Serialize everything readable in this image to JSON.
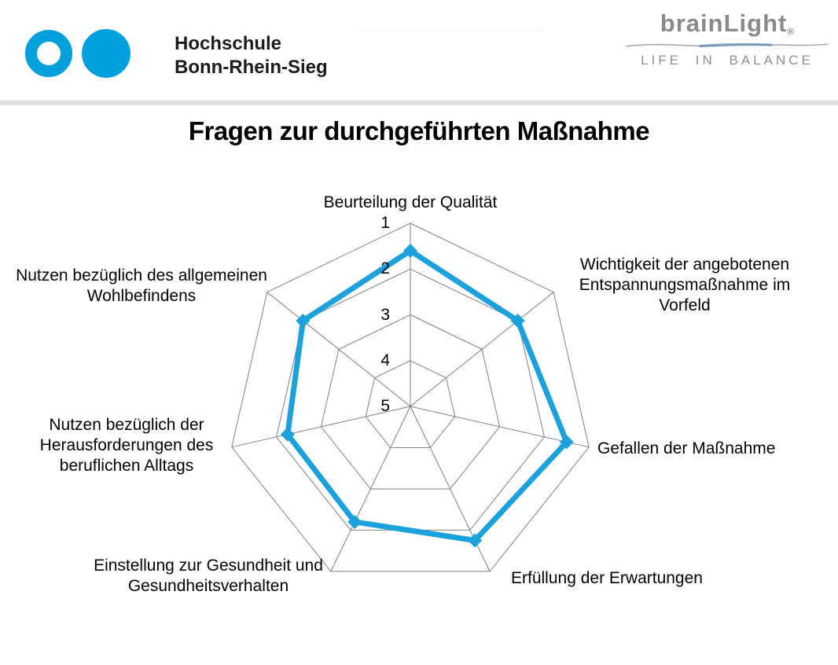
{
  "header": {
    "university": {
      "line1": "Hochschule",
      "line2": "Bonn-Rhein-Sieg",
      "logo_color": "#00a0dd"
    },
    "brand": {
      "name": "brainLight",
      "registered": "®",
      "tagline": "LIFE IN BALANCE",
      "color": "#8a8a8a"
    }
  },
  "page_title": "Fragen zur durchgeführten Maßnahme",
  "chart_data": {
    "type": "radar",
    "title": "Fragen zur durchgeführten Maßnahme",
    "scale": {
      "outer_value": 1,
      "center_value": 5,
      "ticks": [
        "1",
        "2",
        "3",
        "4",
        "5"
      ],
      "direction": "best score 1 on outer ring, 5 at center"
    },
    "axes": [
      {
        "label": "Beurteilung der Qualität",
        "value": 1.6
      },
      {
        "label": "Wichtigkeit der angebotenen Entspannungsmaßnahme im Vorfeld",
        "value": 2.0
      },
      {
        "label": "Gefallen der Maßnahme",
        "value": 1.5
      },
      {
        "label": "Erfüllung der Erwartungen",
        "value": 1.75
      },
      {
        "label": "Einstellung zur Gesundheit und Gesundheitsverhalten",
        "value": 2.2
      },
      {
        "label": "Nutzen bezüglich der Herausforderungen des beruflichen Alltags",
        "value": 2.25
      },
      {
        "label": "Nutzen bezüglich des allgemeinen Wohlbefindens",
        "value": 2.0
      }
    ],
    "series_color": "#1ba1dc",
    "grid_color": "#7f7f7f",
    "grid": true,
    "legend": "none"
  }
}
